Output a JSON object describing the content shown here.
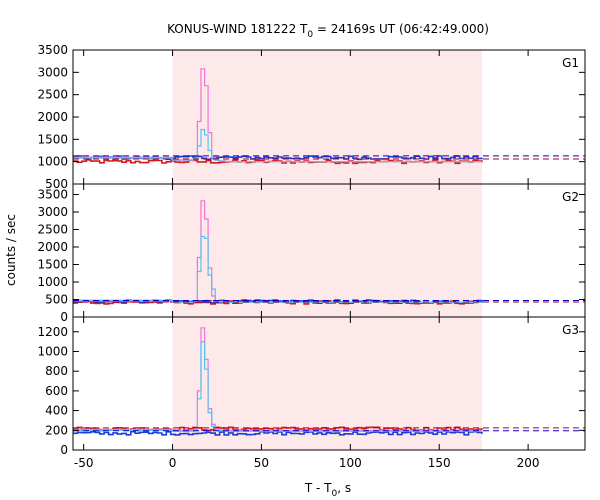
{
  "chart_data": {
    "type": "line",
    "title_main": "KONUS-WIND 181222 T",
    "title_sub": "0",
    "title_rest": " = 24169s UT (06:42:49.000)",
    "ylabel": "counts / sec",
    "xlabel_main": "T - T",
    "xlabel_sub": "0",
    "xlabel_rest": ", s",
    "xlim": [
      -56,
      232
    ],
    "xticks": [
      -50,
      0,
      50,
      100,
      150,
      200
    ],
    "xtick_labels": [
      "-50",
      "0",
      "50",
      "100",
      "150",
      "200"
    ],
    "highlight_range": [
      0,
      174
    ],
    "colors": {
      "shade": "#fde8ea",
      "pink": "#f075d2",
      "cyan": "#55c3f0",
      "red": "#d7191c",
      "blue": "#1a3fd8",
      "ref_red": "#a40020",
      "ref_blue": "#0000cc"
    },
    "panels": [
      {
        "name": "G1",
        "ylim": [
          500,
          3500
        ],
        "yticks": [
          500,
          1000,
          1500,
          2000,
          2500,
          3000,
          3500
        ],
        "ytick_labels": [
          "500",
          "1000",
          "1500",
          "2000",
          "2500",
          "3000",
          "3500"
        ],
        "bg_red_level": 1060,
        "bg_blue_level": 1130,
        "base_red": 1000,
        "base_blue": 1090,
        "series": [
          {
            "name": "pink",
            "x": [
              -56,
              0,
              12,
              14,
              16,
              18,
              20,
              22,
              24,
              26,
              30,
              174
            ],
            "y": [
              1100,
              1030,
              1080,
              1900,
              3080,
              2700,
              1650,
              1100,
              1030,
              1020,
              1000,
              1000
            ]
          },
          {
            "name": "cyan",
            "x": [
              -56,
              0,
              12,
              14,
              16,
              18,
              20,
              22,
              24,
              26,
              30,
              174
            ],
            "y": [
              1080,
              1040,
              1070,
              1350,
              1720,
              1600,
              1250,
              1060,
              1030,
              1010,
              1000,
              1000
            ]
          }
        ]
      },
      {
        "name": "G2",
        "ylim": [
          0,
          3800
        ],
        "yticks": [
          0,
          500,
          1000,
          1500,
          2000,
          2500,
          3000,
          3500
        ],
        "ytick_labels": [
          "0",
          "500",
          "1000",
          "1500",
          "2000",
          "2500",
          "3000",
          "3500"
        ],
        "bg_red_level": 430,
        "bg_blue_level": 470,
        "base_red": 420,
        "base_blue": 440,
        "series": [
          {
            "name": "pink",
            "x": [
              -56,
              0,
              12,
              14,
              16,
              18,
              20,
              22,
              24,
              26,
              30,
              174
            ],
            "y": [
              480,
              420,
              450,
              1700,
              3320,
              2800,
              1400,
              600,
              460,
              430,
              420,
              420
            ]
          },
          {
            "name": "cyan",
            "x": [
              -56,
              0,
              12,
              14,
              16,
              18,
              20,
              22,
              24,
              26,
              30,
              174
            ],
            "y": [
              460,
              420,
              450,
              1300,
              2300,
              2250,
              1200,
              800,
              460,
              430,
              420,
              420
            ]
          }
        ]
      },
      {
        "name": "G3",
        "ylim": [
          0,
          1350
        ],
        "yticks": [
          0,
          200,
          400,
          600,
          800,
          1000,
          1200
        ],
        "ytick_labels": [
          "0",
          "200",
          "400",
          "600",
          "800",
          "1000",
          "1200"
        ],
        "bg_red_level": 225,
        "bg_blue_level": 195,
        "base_red": 215,
        "base_blue": 170,
        "series": [
          {
            "name": "pink",
            "x": [
              -56,
              0,
              12,
              14,
              16,
              18,
              20,
              22,
              24,
              26,
              30,
              174
            ],
            "y": [
              210,
              200,
              210,
              600,
              1240,
              920,
              420,
              260,
              220,
              205,
              200,
              200
            ]
          },
          {
            "name": "cyan",
            "x": [
              -56,
              0,
              12,
              14,
              16,
              18,
              20,
              22,
              24,
              26,
              30,
              174
            ],
            "y": [
              200,
              190,
              200,
              520,
              1100,
              820,
              380,
              240,
              205,
              195,
              190,
              190
            ]
          }
        ]
      }
    ]
  }
}
